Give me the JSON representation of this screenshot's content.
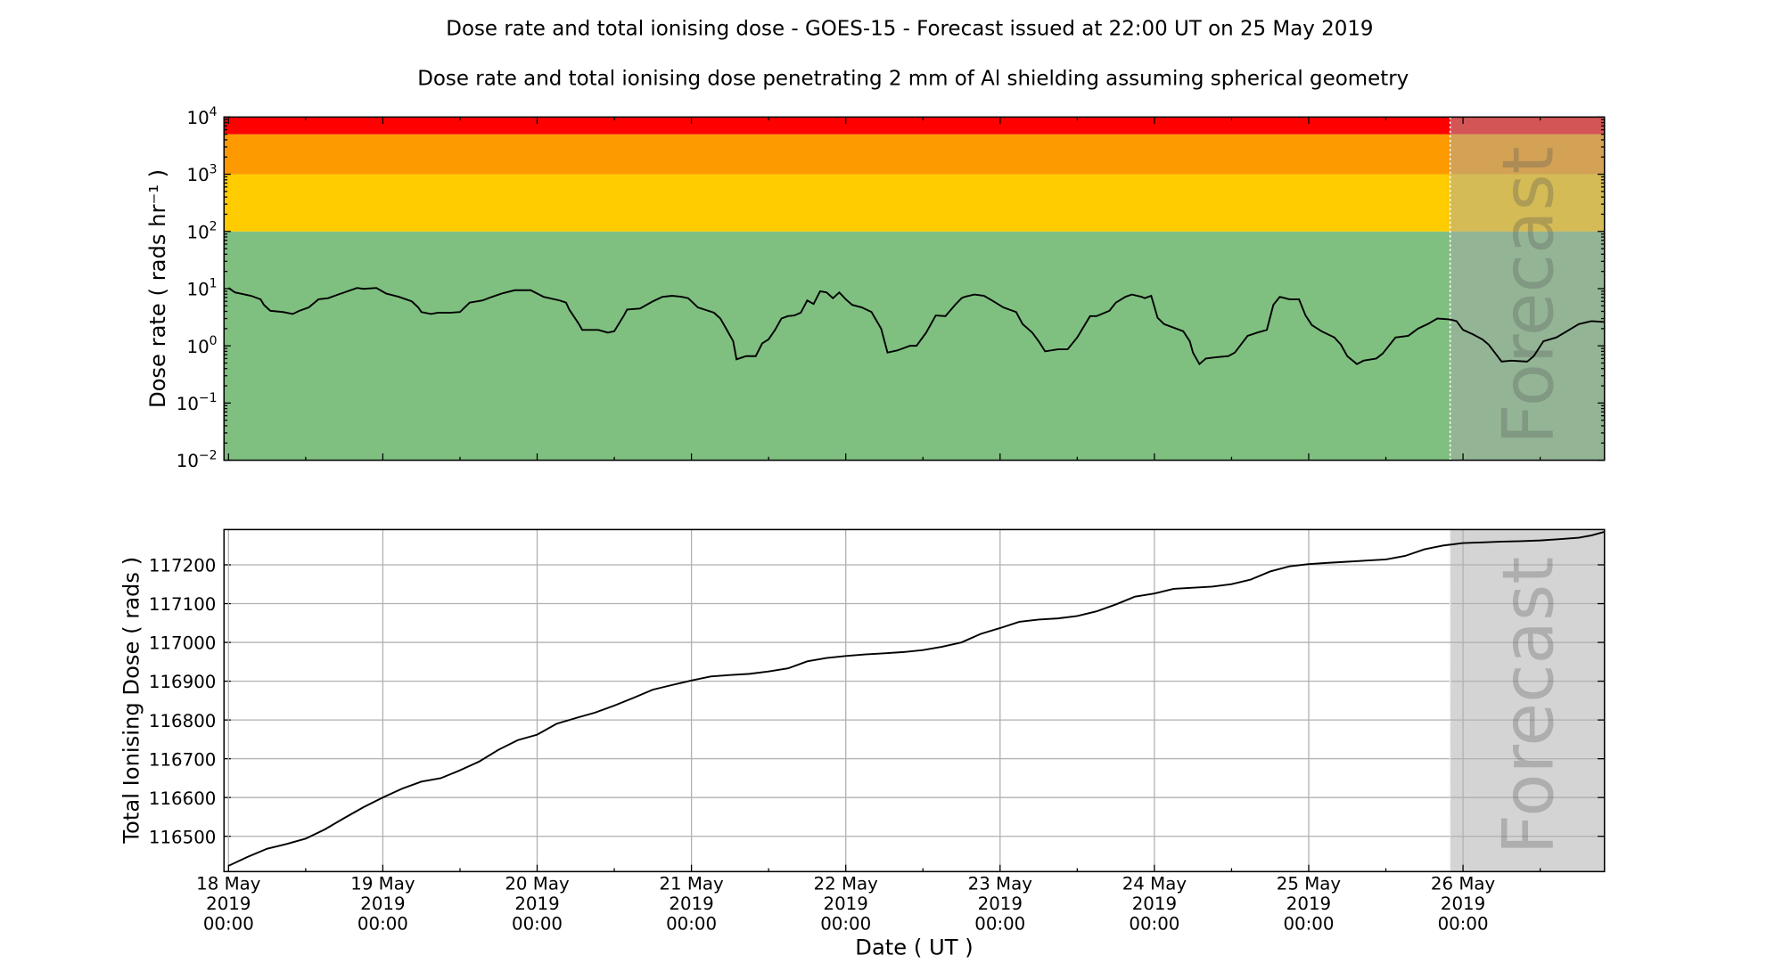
{
  "title": "Dose rate and total ionising dose - GOES-15 - Forecast issued at 22:00 UT on 25 May 2019",
  "subtitle": "Dose rate and total ionising dose penetrating 2 mm of Al shielding assuming spherical geometry",
  "forecast_label": "Forecast",
  "forecast_start": "2019-05-25 22:00",
  "forecast_overlay_color": "#aaaaaa",
  "chart_data": [
    {
      "type": "line",
      "panel": "top",
      "ylabel": "Dose rate ( rads hr⁻¹ )",
      "yscale": "log",
      "ylim": [
        0.01,
        10000
      ],
      "xlim": [
        "2019-05-17 23:18",
        "2019-05-26 22:00"
      ],
      "ytick_labels": [
        {
          "base": "10",
          "exp": "−2",
          "v": 0.01
        },
        {
          "base": "10",
          "exp": "−1",
          "v": 0.1
        },
        {
          "base": "10",
          "exp": "0",
          "v": 1
        },
        {
          "base": "10",
          "exp": "1",
          "v": 10
        },
        {
          "base": "10",
          "exp": "2",
          "v": 100
        },
        {
          "base": "10",
          "exp": "3",
          "v": 1000
        },
        {
          "base": "10",
          "exp": "4",
          "v": 10000
        }
      ],
      "grid": false,
      "bands": [
        {
          "from": 0.01,
          "to": 100,
          "color": "#7fc080"
        },
        {
          "from": 100,
          "to": 1000,
          "color": "#ffcc00"
        },
        {
          "from": 1000,
          "to": 5000,
          "color": "#fd9a00"
        },
        {
          "from": 5000,
          "to": 10000,
          "color": "#ff0000"
        }
      ],
      "line_color": "#000000",
      "points": [
        [
          "2019-05-18 00:00",
          10.3
        ],
        [
          "2019-05-18 01:00",
          8.6
        ],
        [
          "2019-05-18 03:30",
          7.5
        ],
        [
          "2019-05-18 05:00",
          6.5
        ],
        [
          "2019-05-18 05:30",
          5.2
        ],
        [
          "2019-05-18 06:30",
          4.1
        ],
        [
          "2019-05-18 08:30",
          3.9
        ],
        [
          "2019-05-18 10:00",
          3.6
        ],
        [
          "2019-05-18 11:00",
          4.1
        ],
        [
          "2019-05-18 12:30",
          4.7
        ],
        [
          "2019-05-18 14:00",
          6.5
        ],
        [
          "2019-05-18 15:30",
          6.8
        ],
        [
          "2019-05-18 17:30",
          8.2
        ],
        [
          "2019-05-18 20:00",
          10.3
        ],
        [
          "2019-05-18 21:00",
          9.9
        ],
        [
          "2019-05-18 23:00",
          10.3
        ],
        [
          "2019-05-19 00:30",
          8.2
        ],
        [
          "2019-05-19 02:30",
          7.2
        ],
        [
          "2019-05-19 04:30",
          6.0
        ],
        [
          "2019-05-19 05:30",
          4.7
        ],
        [
          "2019-05-19 06:00",
          3.9
        ],
        [
          "2019-05-19 07:30",
          3.6
        ],
        [
          "2019-05-19 08:30",
          3.8
        ],
        [
          "2019-05-19 10:30",
          3.8
        ],
        [
          "2019-05-19 12:00",
          3.9
        ],
        [
          "2019-05-19 13:30",
          5.7
        ],
        [
          "2019-05-19 15:30",
          6.2
        ],
        [
          "2019-05-19 17:00",
          7.2
        ],
        [
          "2019-05-19 18:30",
          8.2
        ],
        [
          "2019-05-19 20:30",
          9.4
        ],
        [
          "2019-05-19 23:00",
          9.4
        ],
        [
          "2019-05-20 01:00",
          7.2
        ],
        [
          "2019-05-20 03:30",
          6.2
        ],
        [
          "2019-05-20 04:30",
          5.7
        ],
        [
          "2019-05-20 05:00",
          4.3
        ],
        [
          "2019-05-20 06:30",
          2.4
        ],
        [
          "2019-05-20 07:00",
          1.9
        ],
        [
          "2019-05-20 09:30",
          1.9
        ],
        [
          "2019-05-20 11:00",
          1.7
        ],
        [
          "2019-05-20 12:00",
          1.8
        ],
        [
          "2019-05-20 13:30",
          3.4
        ],
        [
          "2019-05-20 14:00",
          4.3
        ],
        [
          "2019-05-20 16:00",
          4.5
        ],
        [
          "2019-05-20 18:00",
          6.0
        ],
        [
          "2019-05-20 19:30",
          7.2
        ],
        [
          "2019-05-20 21:00",
          7.5
        ],
        [
          "2019-05-20 22:30",
          7.2
        ],
        [
          "2019-05-20 23:30",
          6.8
        ],
        [
          "2019-05-21 01:00",
          4.7
        ],
        [
          "2019-05-21 03:30",
          3.8
        ],
        [
          "2019-05-21 04:30",
          3.0
        ],
        [
          "2019-05-21 05:30",
          1.9
        ],
        [
          "2019-05-21 06:30",
          1.2
        ],
        [
          "2019-05-21 07:00",
          0.58
        ],
        [
          "2019-05-21 08:30",
          0.66
        ],
        [
          "2019-05-21 10:00",
          0.66
        ],
        [
          "2019-05-21 11:00",
          1.1
        ],
        [
          "2019-05-21 12:00",
          1.3
        ],
        [
          "2019-05-21 13:00",
          1.9
        ],
        [
          "2019-05-21 14:00",
          3.0
        ],
        [
          "2019-05-21 15:00",
          3.3
        ],
        [
          "2019-05-21 16:00",
          3.4
        ],
        [
          "2019-05-21 17:00",
          3.8
        ],
        [
          "2019-05-21 18:00",
          6.2
        ],
        [
          "2019-05-21 19:00",
          5.4
        ],
        [
          "2019-05-21 20:00",
          9.0
        ],
        [
          "2019-05-21 21:00",
          8.6
        ],
        [
          "2019-05-21 22:00",
          6.8
        ],
        [
          "2019-05-21 23:00",
          8.6
        ],
        [
          "2019-05-22 00:00",
          6.5
        ],
        [
          "2019-05-22 01:00",
          5.2
        ],
        [
          "2019-05-22 02:30",
          4.7
        ],
        [
          "2019-05-22 04:00",
          3.9
        ],
        [
          "2019-05-22 05:30",
          2.0
        ],
        [
          "2019-05-22 06:30",
          0.76
        ],
        [
          "2019-05-22 08:00",
          0.83
        ],
        [
          "2019-05-22 10:00",
          1.0
        ],
        [
          "2019-05-22 11:00",
          1.0
        ],
        [
          "2019-05-22 12:30",
          1.7
        ],
        [
          "2019-05-22 14:00",
          3.4
        ],
        [
          "2019-05-22 15:30",
          3.3
        ],
        [
          "2019-05-22 17:00",
          5.2
        ],
        [
          "2019-05-22 18:00",
          6.8
        ],
        [
          "2019-05-22 18:30",
          7.2
        ],
        [
          "2019-05-22 20:00",
          7.9
        ],
        [
          "2019-05-22 21:30",
          7.5
        ],
        [
          "2019-05-22 23:00",
          6.0
        ],
        [
          "2019-05-23 00:30",
          4.7
        ],
        [
          "2019-05-23 02:30",
          3.9
        ],
        [
          "2019-05-23 03:30",
          2.4
        ],
        [
          "2019-05-23 05:00",
          1.7
        ],
        [
          "2019-05-23 06:00",
          1.2
        ],
        [
          "2019-05-23 07:00",
          0.8
        ],
        [
          "2019-05-23 09:00",
          0.87
        ],
        [
          "2019-05-23 10:30",
          0.87
        ],
        [
          "2019-05-23 12:00",
          1.4
        ],
        [
          "2019-05-23 14:00",
          3.3
        ],
        [
          "2019-05-23 15:00",
          3.3
        ],
        [
          "2019-05-23 17:00",
          4.1
        ],
        [
          "2019-05-23 18:00",
          5.7
        ],
        [
          "2019-05-23 19:30",
          7.2
        ],
        [
          "2019-05-23 20:30",
          7.9
        ],
        [
          "2019-05-23 22:00",
          7.2
        ],
        [
          "2019-05-23 22:30",
          6.8
        ],
        [
          "2019-05-23 23:30",
          7.5
        ],
        [
          "2019-05-24 00:30",
          3.1
        ],
        [
          "2019-05-24 01:30",
          2.4
        ],
        [
          "2019-05-24 04:30",
          1.8
        ],
        [
          "2019-05-24 05:30",
          1.2
        ],
        [
          "2019-05-24 06:00",
          0.76
        ],
        [
          "2019-05-24 07:00",
          0.48
        ],
        [
          "2019-05-24 08:00",
          0.6
        ],
        [
          "2019-05-24 09:30",
          0.63
        ],
        [
          "2019-05-24 11:30",
          0.66
        ],
        [
          "2019-05-24 12:30",
          0.76
        ],
        [
          "2019-05-24 14:30",
          1.5
        ],
        [
          "2019-05-24 16:00",
          1.7
        ],
        [
          "2019-05-24 17:30",
          1.9
        ],
        [
          "2019-05-24 18:30",
          5.2
        ],
        [
          "2019-05-24 19:30",
          7.2
        ],
        [
          "2019-05-24 21:00",
          6.5
        ],
        [
          "2019-05-24 22:30",
          6.5
        ],
        [
          "2019-05-24 23:30",
          3.4
        ],
        [
          "2019-05-25 00:30",
          2.3
        ],
        [
          "2019-05-25 02:00",
          1.8
        ],
        [
          "2019-05-25 04:00",
          1.4
        ],
        [
          "2019-05-25 05:00",
          1.05
        ],
        [
          "2019-05-25 06:00",
          0.66
        ],
        [
          "2019-05-25 07:30",
          0.48
        ],
        [
          "2019-05-25 08:30",
          0.55
        ],
        [
          "2019-05-25 10:30",
          0.6
        ],
        [
          "2019-05-25 11:30",
          0.73
        ],
        [
          "2019-05-25 13:30",
          1.4
        ],
        [
          "2019-05-25 15:30",
          1.5
        ],
        [
          "2019-05-25 17:00",
          2.0
        ],
        [
          "2019-05-25 18:30",
          2.4
        ],
        [
          "2019-05-25 20:00",
          3.0
        ],
        [
          "2019-05-25 22:00",
          2.9
        ],
        [
          "2019-05-25 23:00",
          2.7
        ],
        [
          "2019-05-26 00:00",
          1.9
        ],
        [
          "2019-05-26 01:30",
          1.6
        ],
        [
          "2019-05-26 03:00",
          1.3
        ],
        [
          "2019-05-26 04:00",
          1.05
        ],
        [
          "2019-05-26 05:30",
          0.63
        ],
        [
          "2019-05-26 06:00",
          0.53
        ],
        [
          "2019-05-26 07:30",
          0.55
        ],
        [
          "2019-05-26 10:00",
          0.53
        ],
        [
          "2019-05-26 11:00",
          0.66
        ],
        [
          "2019-05-26 12:30",
          1.2
        ],
        [
          "2019-05-26 14:30",
          1.4
        ],
        [
          "2019-05-26 16:30",
          1.9
        ],
        [
          "2019-05-26 18:00",
          2.4
        ],
        [
          "2019-05-26 20:00",
          2.7
        ],
        [
          "2019-05-26 22:00",
          2.6
        ]
      ]
    },
    {
      "type": "line",
      "panel": "bottom",
      "ylabel": "Total Ionising Dose ( rads )",
      "xlabel": "Date ( UT )",
      "ylim": [
        116409,
        117291
      ],
      "xlim": [
        "2019-05-17 23:18",
        "2019-05-26 22:00"
      ],
      "yticks": [
        116500,
        116600,
        116700,
        116800,
        116900,
        117000,
        117100,
        117200
      ],
      "ytick_labels": [
        "116500",
        "116600",
        "116700",
        "116800",
        "116900",
        "117000",
        "117100",
        "117200"
      ],
      "xticks": [
        "2019-05-18 00:00",
        "2019-05-19 00:00",
        "2019-05-20 00:00",
        "2019-05-21 00:00",
        "2019-05-22 00:00",
        "2019-05-23 00:00",
        "2019-05-24 00:00",
        "2019-05-25 00:00",
        "2019-05-26 00:00"
      ],
      "xtick_labels": [
        [
          "18 May",
          "2019",
          "00:00"
        ],
        [
          "19 May",
          "2019",
          "00:00"
        ],
        [
          "20 May",
          "2019",
          "00:00"
        ],
        [
          "21 May",
          "2019",
          "00:00"
        ],
        [
          "22 May",
          "2019",
          "00:00"
        ],
        [
          "23 May",
          "2019",
          "00:00"
        ],
        [
          "24 May",
          "2019",
          "00:00"
        ],
        [
          "25 May",
          "2019",
          "00:00"
        ],
        [
          "26 May",
          "2019",
          "00:00"
        ]
      ],
      "grid": true,
      "line_color": "#000000",
      "points": [
        [
          "2019-05-18 00:00",
          116424
        ],
        [
          "2019-05-18 03:00",
          116447
        ],
        [
          "2019-05-18 06:00",
          116468
        ],
        [
          "2019-05-18 09:00",
          116480
        ],
        [
          "2019-05-18 12:00",
          116494
        ],
        [
          "2019-05-18 15:00",
          116518
        ],
        [
          "2019-05-18 18:00",
          116547
        ],
        [
          "2019-05-18 21:00",
          116575
        ],
        [
          "2019-05-19 00:00",
          116600
        ],
        [
          "2019-05-19 03:00",
          116623
        ],
        [
          "2019-05-19 06:00",
          116641
        ],
        [
          "2019-05-19 09:00",
          116650
        ],
        [
          "2019-05-19 12:00",
          116670
        ],
        [
          "2019-05-19 15:00",
          116693
        ],
        [
          "2019-05-19 18:00",
          116723
        ],
        [
          "2019-05-19 21:00",
          116748
        ],
        [
          "2019-05-20 00:00",
          116762
        ],
        [
          "2019-05-20 03:00",
          116790
        ],
        [
          "2019-05-20 06:00",
          116805
        ],
        [
          "2019-05-20 09:00",
          116819
        ],
        [
          "2019-05-20 12:00",
          116837
        ],
        [
          "2019-05-20 15:00",
          116857
        ],
        [
          "2019-05-20 18:00",
          116878
        ],
        [
          "2019-05-20 21:00",
          116890
        ],
        [
          "2019-05-21 00:00",
          116902
        ],
        [
          "2019-05-21 03:00",
          116912
        ],
        [
          "2019-05-21 06:00",
          116916
        ],
        [
          "2019-05-21 09:00",
          116919
        ],
        [
          "2019-05-21 12:00",
          116925
        ],
        [
          "2019-05-21 15:00",
          116933
        ],
        [
          "2019-05-21 18:00",
          116951
        ],
        [
          "2019-05-21 21:00",
          116960
        ],
        [
          "2019-05-22 00:00",
          116965
        ],
        [
          "2019-05-22 03:00",
          116969
        ],
        [
          "2019-05-22 06:00",
          116972
        ],
        [
          "2019-05-22 09:00",
          116975
        ],
        [
          "2019-05-22 12:00",
          116980
        ],
        [
          "2019-05-22 15:00",
          116989
        ],
        [
          "2019-05-22 18:00",
          117000
        ],
        [
          "2019-05-22 21:00",
          117022
        ],
        [
          "2019-05-23 00:00",
          117037
        ],
        [
          "2019-05-23 03:00",
          117053
        ],
        [
          "2019-05-23 06:00",
          117059
        ],
        [
          "2019-05-23 09:00",
          117062
        ],
        [
          "2019-05-23 12:00",
          117068
        ],
        [
          "2019-05-23 15:00",
          117080
        ],
        [
          "2019-05-23 18:00",
          117098
        ],
        [
          "2019-05-23 21:00",
          117118
        ],
        [
          "2019-05-24 00:00",
          117126
        ],
        [
          "2019-05-24 03:00",
          117138
        ],
        [
          "2019-05-24 06:00",
          117141
        ],
        [
          "2019-05-24 09:00",
          117144
        ],
        [
          "2019-05-24 12:00",
          117150
        ],
        [
          "2019-05-24 15:00",
          117162
        ],
        [
          "2019-05-24 18:00",
          117183
        ],
        [
          "2019-05-24 21:00",
          117196
        ],
        [
          "2019-05-25 00:00",
          117202
        ],
        [
          "2019-05-25 03:00",
          117205
        ],
        [
          "2019-05-25 06:00",
          117208
        ],
        [
          "2019-05-25 09:00",
          117211
        ],
        [
          "2019-05-25 12:00",
          117214
        ],
        [
          "2019-05-25 15:00",
          117223
        ],
        [
          "2019-05-25 18:00",
          117240
        ],
        [
          "2019-05-25 21:00",
          117250
        ],
        [
          "2019-05-26 00:00",
          117256
        ],
        [
          "2019-05-26 03:00",
          117258
        ],
        [
          "2019-05-26 06:00",
          117260
        ],
        [
          "2019-05-26 09:00",
          117261
        ],
        [
          "2019-05-26 12:00",
          117263
        ],
        [
          "2019-05-26 15:00",
          117266
        ],
        [
          "2019-05-26 18:00",
          117270
        ],
        [
          "2019-05-26 20:00",
          117276
        ],
        [
          "2019-05-26 22:00",
          117285
        ]
      ]
    }
  ]
}
